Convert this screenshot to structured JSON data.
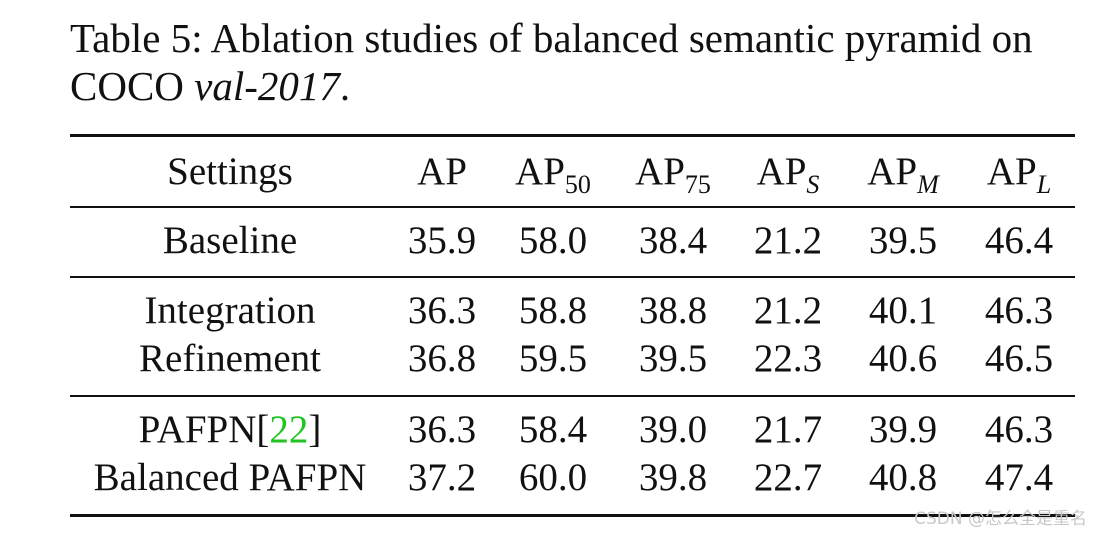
{
  "caption": {
    "label": "Table 5:",
    "text": "Ablation studies of balanced semantic pyramid on COCO",
    "italic": "val-2017",
    "end": "."
  },
  "table": {
    "headers": {
      "settings": "Settings",
      "ap": "AP",
      "ap50": {
        "base": "AP",
        "sub": "50"
      },
      "ap75": {
        "base": "AP",
        "sub": "75"
      },
      "aps": {
        "base": "AP",
        "sub": "S"
      },
      "apm": {
        "base": "AP",
        "sub": "M"
      },
      "apl": {
        "base": "AP",
        "sub": "L"
      }
    },
    "rows": [
      {
        "setting": "Baseline",
        "values": [
          "35.9",
          "58.0",
          "38.4",
          "21.2",
          "39.5",
          "46.4"
        ]
      },
      {
        "setting": "Integration",
        "values": [
          "36.3",
          "58.8",
          "38.8",
          "21.2",
          "40.1",
          "46.3"
        ]
      },
      {
        "setting": "Refinement",
        "values": [
          "36.8",
          "59.5",
          "39.5",
          "22.3",
          "40.6",
          "46.5"
        ]
      },
      {
        "setting": "PAFPN",
        "cite_open": "[",
        "cite": "22",
        "cite_close": "]",
        "values": [
          "36.3",
          "58.4",
          "39.0",
          "21.7",
          "39.9",
          "46.3"
        ]
      },
      {
        "setting": "Balanced PAFPN",
        "values": [
          "37.2",
          "60.0",
          "39.8",
          "22.7",
          "40.8",
          "47.4"
        ]
      }
    ],
    "cite_color": "#22c422"
  },
  "watermark": "CSDN @怎么全是重名"
}
